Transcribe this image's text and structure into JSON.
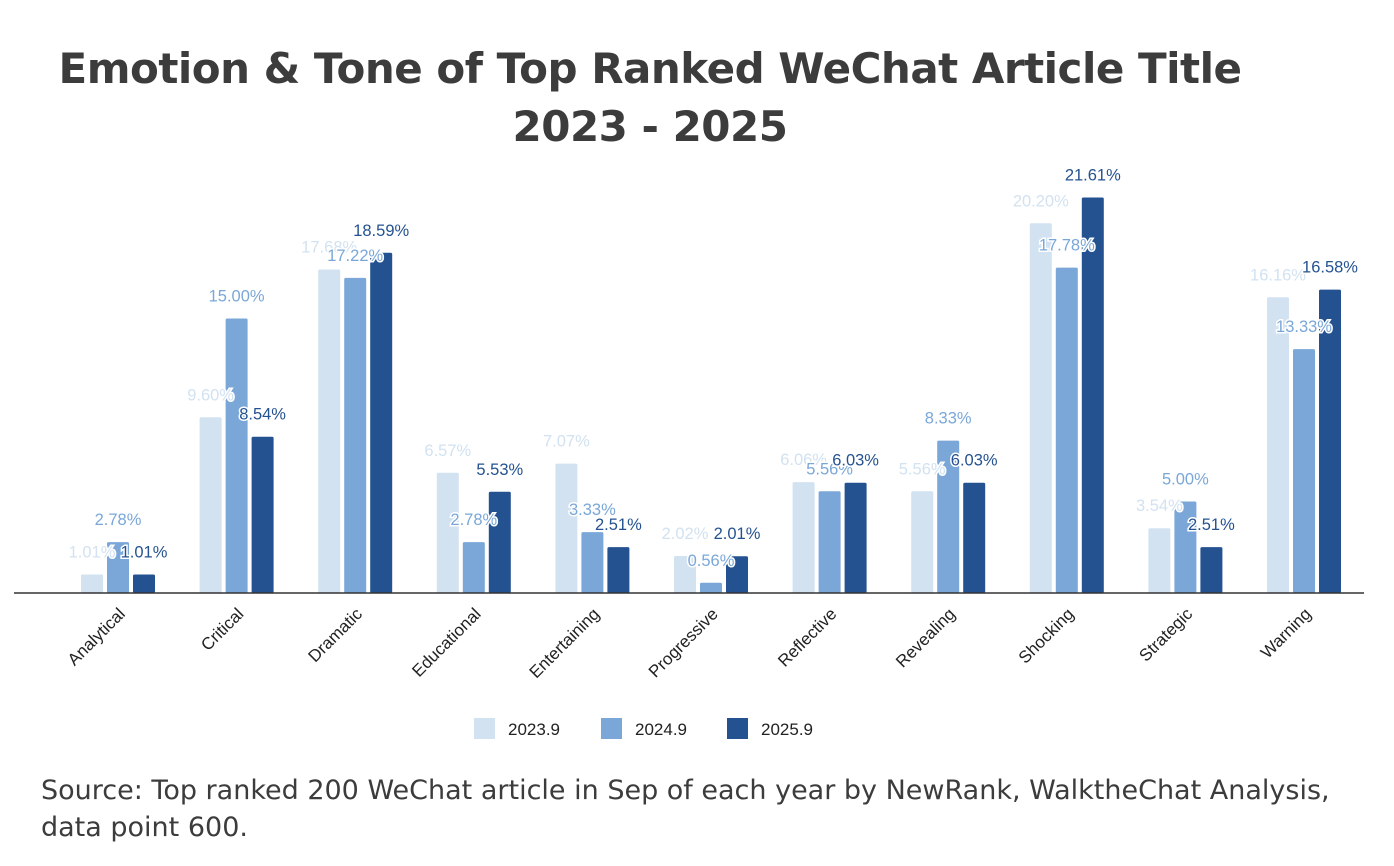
{
  "chart_data": {
    "type": "bar",
    "title": "Emotion & Tone of Top Ranked WeChat Article Title",
    "subtitle": "2023 - 2025",
    "categories": [
      "Analytical",
      "Critical",
      "Dramatic",
      "Educational",
      "Entertaining",
      "Progressive",
      "Reflective",
      "Revealing",
      "Shocking",
      "Strategic",
      "Warning"
    ],
    "series": [
      {
        "name": "2023.9",
        "color": "#d2e2f1",
        "values": [
          1.01,
          9.6,
          17.68,
          6.57,
          7.07,
          2.02,
          6.06,
          5.56,
          20.2,
          3.54,
          16.16
        ],
        "labels": [
          "1.01%",
          "9.60%",
          "17.68%",
          "6.57%",
          "7.07%",
          "2.02%",
          "6.06%",
          "5.56%",
          "20.20%",
          "3.54%",
          "16.16%"
        ]
      },
      {
        "name": "2024.9",
        "color": "#7aa7d8",
        "values": [
          2.78,
          15.0,
          17.22,
          2.78,
          3.33,
          0.56,
          5.56,
          8.33,
          17.78,
          5.0,
          13.33
        ],
        "labels": [
          "2.78%",
          "15.00%",
          "17.22%",
          "2.78%",
          "3.33%",
          "0.56%",
          "5.56%",
          "8.33%",
          "17.78%",
          "5.00%",
          "13.33%"
        ]
      },
      {
        "name": "2025.9",
        "color": "#245290",
        "values": [
          1.01,
          8.54,
          18.59,
          5.53,
          2.51,
          2.01,
          6.03,
          6.03,
          21.61,
          2.51,
          16.58
        ],
        "labels": [
          "1.01%",
          "8.54%",
          "18.59%",
          "5.53%",
          "2.51%",
          "2.01%",
          "6.03%",
          "6.03%",
          "21.61%",
          "2.51%",
          "16.58%"
        ]
      }
    ],
    "label_colors": [
      "#d2e2f1",
      "#7aa7d8",
      "#245290"
    ],
    "ylim": [
      0,
      22
    ],
    "xlabel": "",
    "ylabel": "",
    "grid": false,
    "legend_position": "bottom"
  },
  "source_note": "Source: Top ranked 200 WeChat article in Sep of each year by NewRank, WalktheChat Analysis, data point 600."
}
